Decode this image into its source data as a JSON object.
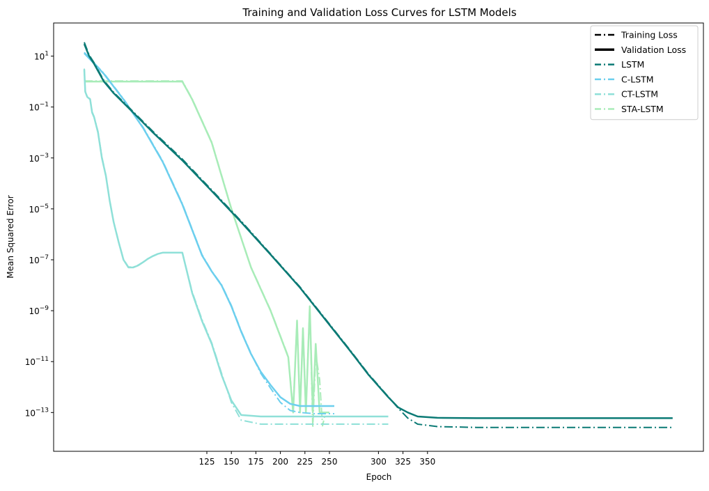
{
  "chart_data": {
    "type": "line",
    "title": "Training and Validation Loss Curves for LSTM Models",
    "xlabel": "Epoch",
    "ylabel": "Mean Squared Error",
    "yscale": "log",
    "xlim": [
      0,
      600
    ],
    "ylim": [
      3e-15,
      200
    ],
    "x_ticks": [
      125,
      150,
      175,
      200,
      225,
      250,
      300,
      325,
      350
    ],
    "x_tick_labels": [
      "125",
      "150",
      "175",
      "200",
      "225",
      "250",
      "300",
      "325",
      "350"
    ],
    "y_ticks": [
      1e-13,
      1e-11,
      1e-09,
      1e-07,
      1e-05,
      0.001,
      0.1,
      10
    ],
    "y_tick_labels": [
      {
        "base": "10",
        "exp": "−13"
      },
      {
        "base": "10",
        "exp": "−11"
      },
      {
        "base": "10",
        "exp": "−9"
      },
      {
        "base": "10",
        "exp": "−7"
      },
      {
        "base": "10",
        "exp": "−5"
      },
      {
        "base": "10",
        "exp": "−3"
      },
      {
        "base": "10",
        "exp": "−1"
      },
      {
        "base": "10",
        "exp": "1"
      }
    ],
    "grid": false,
    "legend_position": "top-right",
    "legend": [
      {
        "label": "Training Loss",
        "color": "#000000",
        "style": "dashdot"
      },
      {
        "label": "Validation Loss",
        "color": "#000000",
        "style": "solid"
      },
      {
        "label": "LSTM",
        "color": "#0b7a75",
        "style": "dashdot"
      },
      {
        "label": "C-LSTM",
        "color": "#6ccfee",
        "style": "dashdot"
      },
      {
        "label": "CT-LSTM",
        "color": "#8fe0d8",
        "style": "dashdot"
      },
      {
        "label": "STA-LSTM",
        "color": "#a8ecb8",
        "style": "dashdot"
      }
    ],
    "series": [
      {
        "name": "LSTM",
        "kind": "Validation Loss",
        "color": "#0b7a75",
        "style": "solid",
        "x": [
          0,
          5,
          10,
          20,
          30,
          50,
          70,
          100,
          130,
          160,
          190,
          220,
          250,
          270,
          290,
          310,
          320,
          330,
          340,
          360,
          400,
          500,
          600
        ],
        "y": [
          30,
          10,
          5,
          1,
          0.35,
          0.06,
          0.01,
          0.0008,
          5e-05,
          3e-06,
          1.6e-07,
          8e-09,
          2.8e-10,
          3e-11,
          3e-12,
          4e-13,
          1.6e-13,
          1e-13,
          7e-14,
          6.2e-14,
          6e-14,
          6e-14,
          6e-14
        ]
      },
      {
        "name": "LSTM",
        "kind": "Training Loss",
        "color": "#0b7a75",
        "style": "dashdot",
        "x": [
          0,
          5,
          10,
          20,
          30,
          50,
          70,
          100,
          130,
          160,
          190,
          220,
          250,
          270,
          290,
          310,
          320,
          330,
          340,
          360,
          400,
          500,
          600
        ],
        "y": [
          35,
          11,
          5.5,
          1.1,
          0.38,
          0.065,
          0.011,
          0.0009,
          5.5e-05,
          3.3e-06,
          1.7e-07,
          8.5e-09,
          3e-10,
          3.2e-11,
          3.2e-12,
          4.2e-13,
          1.5e-13,
          6e-14,
          3.5e-14,
          2.8e-14,
          2.6e-14,
          2.6e-14,
          2.6e-14
        ]
      },
      {
        "name": "C-LSTM",
        "kind": "Validation Loss",
        "color": "#6ccfee",
        "style": "solid",
        "x": [
          0,
          20,
          40,
          60,
          80,
          100,
          110,
          120,
          130,
          140,
          150,
          160,
          170,
          180,
          190,
          200,
          210,
          220,
          235,
          255
        ],
        "y": [
          13,
          2,
          0.2,
          0.015,
          0.0007,
          1.5e-05,
          1.5e-06,
          1.5e-07,
          3.5e-08,
          1e-08,
          1.5e-09,
          1.5e-10,
          2e-11,
          4e-12,
          1.2e-12,
          4e-13,
          2.2e-13,
          1.8e-13,
          1.8e-13,
          1.8e-13
        ]
      },
      {
        "name": "C-LSTM",
        "kind": "Training Loss",
        "color": "#6ccfee",
        "style": "dashdot",
        "x": [
          0,
          20,
          40,
          60,
          80,
          100,
          110,
          120,
          130,
          140,
          150,
          160,
          170,
          180,
          190,
          200,
          210,
          220,
          235,
          255
        ],
        "y": [
          14,
          2.1,
          0.21,
          0.016,
          0.00075,
          1.6e-05,
          1.6e-06,
          1.6e-07,
          3.6e-08,
          1.05e-08,
          1.6e-09,
          1.6e-10,
          2.1e-11,
          3.5e-12,
          9e-13,
          2.5e-13,
          1.2e-13,
          1e-13,
          9e-14,
          9e-14
        ]
      },
      {
        "name": "CT-LSTM",
        "kind": "Validation Loss",
        "color": "#8fe0d8",
        "style": "solid",
        "x": [
          0,
          1,
          3,
          6,
          8,
          10,
          14,
          18,
          22,
          26,
          30,
          35,
          40,
          45,
          50,
          55,
          60,
          65,
          70,
          75,
          80,
          90,
          100,
          110,
          120,
          130,
          140,
          150,
          160,
          180,
          200,
          250,
          300,
          310
        ],
        "y": [
          3,
          0.4,
          0.25,
          0.2,
          0.06,
          0.04,
          0.01,
          0.001,
          0.0002,
          2e-05,
          3e-06,
          5e-07,
          1e-07,
          5e-08,
          5e-08,
          6e-08,
          8e-08,
          1.1e-07,
          1.4e-07,
          1.7e-07,
          1.9e-07,
          1.9e-07,
          1.9e-07,
          5e-09,
          4e-10,
          5e-11,
          3e-12,
          3e-13,
          8e-14,
          7e-14,
          7e-14,
          7e-14,
          7e-14,
          7e-14
        ]
      },
      {
        "name": "CT-LSTM",
        "kind": "Training Loss",
        "color": "#8fe0d8",
        "style": "dashdot",
        "x": [
          0,
          1,
          3,
          6,
          8,
          10,
          14,
          18,
          22,
          26,
          30,
          35,
          40,
          45,
          50,
          55,
          60,
          65,
          70,
          75,
          80,
          90,
          100,
          110,
          120,
          130,
          140,
          150,
          160,
          180,
          200,
          250,
          300,
          310
        ],
        "y": [
          3.2,
          0.42,
          0.26,
          0.21,
          0.065,
          0.042,
          0.011,
          0.0011,
          0.00021,
          2.1e-05,
          3.1e-06,
          5.2e-07,
          1.05e-07,
          5.2e-08,
          5.2e-08,
          6.2e-08,
          8.2e-08,
          1.12e-07,
          1.42e-07,
          1.72e-07,
          1.92e-07,
          1.92e-07,
          1.92e-07,
          5.5e-09,
          4.5e-10,
          5.5e-11,
          3.5e-12,
          2.5e-13,
          5e-14,
          3.5e-14,
          3.5e-14,
          3.5e-14,
          3.5e-14,
          3.5e-14
        ]
      },
      {
        "name": "STA-LSTM",
        "kind": "Validation Loss",
        "color": "#a8ecb8",
        "style": "solid",
        "x": [
          0,
          100,
          110,
          130,
          150,
          170,
          190,
          208,
          213,
          217,
          220,
          223,
          226,
          230,
          233,
          236,
          240,
          243,
          246,
          250
        ],
        "y": [
          1,
          1,
          0.2,
          0.004,
          1e-05,
          5e-08,
          1e-09,
          1.5e-11,
          1e-13,
          4e-10,
          1e-13,
          2e-10,
          1e-13,
          1.5e-09,
          1e-13,
          5e-11,
          1e-13,
          1e-13,
          1e-13,
          1e-13
        ]
      },
      {
        "name": "STA-LSTM",
        "kind": "Training Loss",
        "color": "#a8ecb8",
        "style": "dashdot",
        "x": [
          0,
          100,
          110,
          130,
          150,
          170,
          190,
          208,
          213,
          217,
          220,
          223,
          226,
          230,
          233,
          236,
          240,
          243,
          246,
          250
        ],
        "y": [
          1.05,
          1.05,
          0.21,
          0.0042,
          1.05e-05,
          5.2e-08,
          1.05e-09,
          1.6e-11,
          1.2e-13,
          4.2e-10,
          1.2e-13,
          2.1e-10,
          1.2e-13,
          1.6e-09,
          2.5e-14,
          2e-11,
          2e-12,
          3e-14,
          1e-13,
          1e-13
        ]
      }
    ]
  }
}
